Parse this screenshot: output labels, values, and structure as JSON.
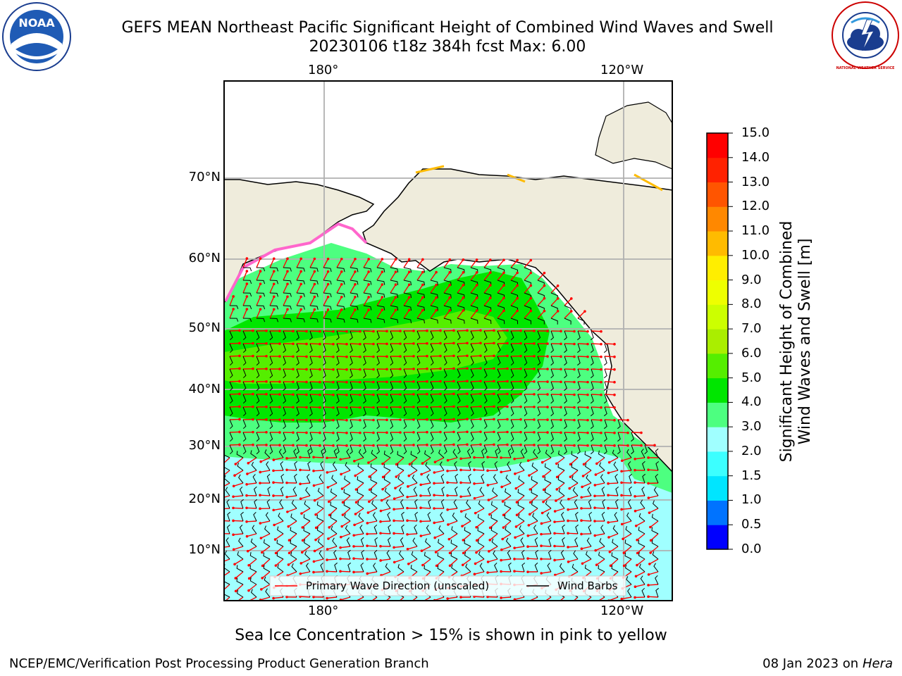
{
  "title_line1": "GEFS MEAN Northeast Pacific Significant Height of Combined Wind Waves and Swell",
  "title_line2": "20230106 t18z 384h fcst   Max: 6.00",
  "noaa_logo_text": "NOAA",
  "nws_logo_text": "NATIONAL WEATHER SERVICE",
  "lon_labels_top": [
    "180°",
    "120°W"
  ],
  "lon_labels_bottom": [
    "180°",
    "120°W"
  ],
  "lat_labels": [
    "70°N",
    "60°N",
    "50°N",
    "40°N",
    "30°N",
    "20°N",
    "10°N"
  ],
  "legend": {
    "wave_label": "Primary Wave Direction (unscaled)",
    "wind_label": "Wind Barbs"
  },
  "colorbar": {
    "title_line1": "Significant Height of Combined",
    "title_line2": "Wind Waves and Swell [m]",
    "ticks": [
      "0.0",
      "0.5",
      "1.0",
      "1.5",
      "2.0",
      "3.0",
      "4.0",
      "5.0",
      "6.0",
      "7.0",
      "8.0",
      "9.0",
      "10.0",
      "11.0",
      "12.0",
      "13.0",
      "14.0",
      "15.0"
    ],
    "colors": [
      "#0000ff",
      "#0073ff",
      "#00e5ff",
      "#3cffff",
      "#a0ffff",
      "#4dff80",
      "#00e600",
      "#55ee00",
      "#aaee00",
      "#ccff00",
      "#eeff00",
      "#ffee00",
      "#ffbb00",
      "#ff8800",
      "#ff5500",
      "#ff2200",
      "#ff0000"
    ]
  },
  "colors": {
    "land": "#efecdc",
    "grid": "#b0b0b0",
    "wave_arrow": "#ff0000",
    "wind_barb": "#000000",
    "sea_ice": "#ff66cc"
  },
  "footer_note": "Sea Ice Concentration > 15% is shown in pink to yellow",
  "credit": "NCEP/EMC/Verification Post Processing Product Generation Branch",
  "date_text": "08 Jan 2023 on",
  "date_host": "Hera"
}
